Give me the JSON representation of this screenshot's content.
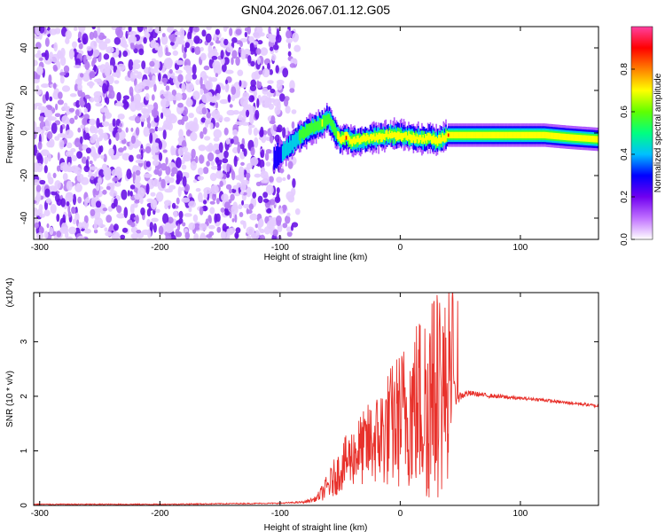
{
  "title": "GN04.2026.067.01.12.G05",
  "colorbar": {
    "label": "Normalized spectral amplitude",
    "ticks": [
      "0.0",
      "0.2",
      "0.4",
      "0.6",
      "0.8"
    ],
    "tick_values": [
      0.0,
      0.2,
      0.4,
      0.6,
      0.8
    ],
    "range": [
      0,
      1
    ],
    "colors": [
      "#ffffff",
      "#c070ff",
      "#7000f0",
      "#0000ff",
      "#00c0ff",
      "#00ff80",
      "#60ff00",
      "#ffff00",
      "#ff8000",
      "#ff0000",
      "#ff40a0"
    ]
  },
  "chart_data": [
    {
      "type": "heatmap",
      "xlabel": "Height of straight line (km)",
      "ylabel": "Frequency (Hz)",
      "xlim": [
        -305,
        165
      ],
      "ylim": [
        -50,
        50
      ],
      "x_ticks": [
        -300,
        -200,
        -100,
        0,
        100
      ],
      "x_tick_labels": [
        "-300",
        "-200",
        "-100",
        "0",
        "100"
      ],
      "y_ticks": [
        -40,
        -20,
        0,
        20,
        40
      ],
      "y_tick_labels": [
        "-40",
        "-20",
        "0",
        "20",
        "40"
      ],
      "grid": false,
      "noise_region_x": [
        -305,
        -85
      ],
      "signal_ridge": {
        "x": [
          -105,
          -95,
          -85,
          -75,
          -65,
          -60,
          -55,
          -50,
          -45,
          -40,
          -30,
          -20,
          -10,
          0,
          10,
          20,
          25,
          30,
          40,
          60,
          80,
          100,
          120,
          140,
          165
        ],
        "frequency": [
          -12,
          -8,
          -2,
          2,
          4,
          7,
          2,
          -3,
          -2,
          -4,
          -3,
          -2,
          -1,
          -1,
          -2,
          -3,
          -2,
          -4,
          -1,
          -1,
          -1,
          -1,
          -1,
          -2,
          -3
        ],
        "amplitude": [
          0.3,
          0.4,
          0.5,
          0.6,
          0.65,
          0.6,
          0.6,
          0.7,
          0.85,
          0.75,
          0.8,
          0.75,
          0.75,
          0.75,
          0.75,
          0.8,
          0.75,
          0.8,
          0.85,
          0.8,
          0.8,
          0.8,
          0.75,
          0.7,
          0.65
        ]
      }
    },
    {
      "type": "line",
      "xlabel": "Height of straight line (km)",
      "ylabel": "SNR (10 * v/v)",
      "yscale_label": "(x10^4)",
      "xlim": [
        -305,
        165
      ],
      "ylim": [
        0,
        3.9
      ],
      "x_ticks": [
        -300,
        -200,
        -100,
        0,
        100
      ],
      "x_tick_labels": [
        "-300",
        "-200",
        "-100",
        "0",
        "100"
      ],
      "y_ticks": [
        0,
        1,
        2,
        3
      ],
      "y_tick_labels": [
        "0",
        "1",
        "2",
        "3"
      ],
      "grid": false,
      "series": [
        {
          "color": "#e8312b",
          "x": [
            -305,
            -250,
            -200,
            -150,
            -100,
            -80,
            -70,
            -60,
            -55,
            -50,
            -45,
            -40,
            -35,
            -30,
            -25,
            -20,
            -15,
            -10,
            -5,
            0,
            5,
            10,
            15,
            20,
            25,
            30,
            35,
            40,
            45,
            50,
            55,
            60,
            70,
            80,
            90,
            100,
            110,
            120,
            130,
            140,
            150,
            165
          ],
          "y": [
            0.02,
            0.02,
            0.02,
            0.03,
            0.04,
            0.06,
            0.12,
            0.35,
            0.5,
            0.65,
            0.8,
            0.9,
            1.0,
            1.05,
            1.15,
            1.2,
            1.3,
            1.4,
            1.5,
            1.6,
            1.7,
            1.8,
            1.85,
            1.9,
            1.95,
            2.0,
            2.05,
            2.1,
            2.05,
            2.0,
            2.05,
            2.05,
            2.02,
            2.0,
            1.98,
            1.96,
            1.95,
            1.93,
            1.9,
            1.88,
            1.86,
            1.82
          ],
          "envelope": [
            0.01,
            0.01,
            0.01,
            0.01,
            0.01,
            0.02,
            0.05,
            0.25,
            0.35,
            0.4,
            0.5,
            0.55,
            0.65,
            0.7,
            0.8,
            0.85,
            1.0,
            1.1,
            1.2,
            1.3,
            1.4,
            1.55,
            1.7,
            1.8,
            1.9,
            1.9,
            1.85,
            1.6,
            0.3,
            0.08,
            0.06,
            0.05,
            0.04,
            0.04,
            0.04,
            0.03,
            0.03,
            0.03,
            0.03,
            0.03,
            0.03,
            0.03
          ]
        }
      ]
    }
  ]
}
